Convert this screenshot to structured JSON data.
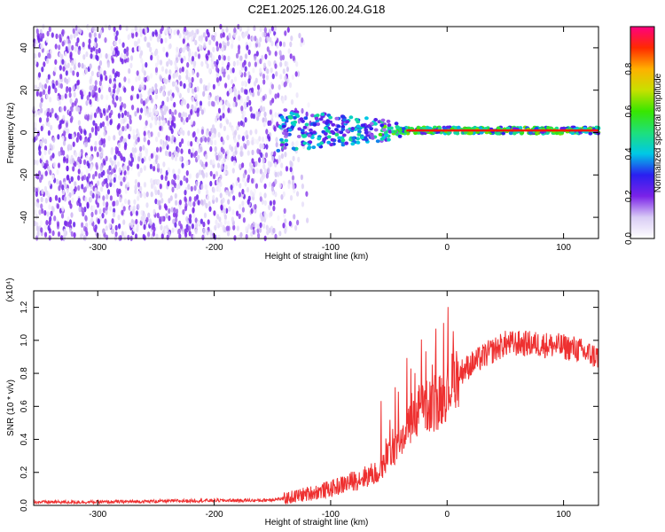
{
  "title": "C2E1.2025.126.00.24.G18",
  "chart_data": [
    {
      "type": "heatmap",
      "xlabel": "Height of straight line (km)",
      "ylabel": "Frequency (Hz)",
      "xlim": [
        -355,
        130
      ],
      "ylim": [
        -50,
        50
      ],
      "xticks": [
        -300,
        -200,
        -100,
        0,
        100
      ],
      "yticks": [
        -40,
        -20,
        0,
        20,
        40
      ],
      "colorbar": {
        "label": "Normalized spectral amplitude",
        "range": [
          0,
          1
        ],
        "ticks": [
          "0.0",
          "0.2",
          "0.4",
          "0.6",
          "0.8"
        ],
        "colors": [
          "#ffffff",
          "#d9ccf5",
          "#7a22e8",
          "#2a1ff0",
          "#00c8e6",
          "#1ee07a",
          "#38e600",
          "#c8e000",
          "#ffb000",
          "#ff2a00",
          "#ff0080"
        ]
      },
      "features": {
        "noise_region_x": [
          -355,
          -115
        ],
        "signal_line_freq": 1,
        "signal_emerges_at_x": -145
      }
    },
    {
      "type": "line",
      "xlabel": "Height of straight line (km)",
      "ylabel": "SNR (10 * v/v)",
      "yscale_label": "(x10⁴)",
      "xlim": [
        -355,
        130
      ],
      "ylim": [
        0,
        1.3
      ],
      "xticks": [
        -300,
        -200,
        -100,
        0,
        100
      ],
      "yticks": [
        "0.0",
        "0.2",
        "0.4",
        "0.6",
        "0.8",
        "1.0",
        "1.2"
      ],
      "color": "#ee3030",
      "series": [
        {
          "x": [
            -355,
            -300,
            -250,
            -200,
            -160,
            -140,
            -120,
            -100,
            -80,
            -60,
            -45,
            -30,
            -20,
            -10,
            0,
            10,
            20,
            35,
            50,
            70,
            90,
            110,
            120,
            130
          ],
          "values": [
            0.02,
            0.02,
            0.025,
            0.03,
            0.03,
            0.04,
            0.07,
            0.1,
            0.15,
            0.2,
            0.35,
            0.5,
            0.6,
            0.6,
            0.7,
            0.8,
            0.85,
            0.92,
            0.98,
            0.98,
            0.97,
            0.95,
            0.92,
            0.9
          ]
        }
      ]
    }
  ]
}
